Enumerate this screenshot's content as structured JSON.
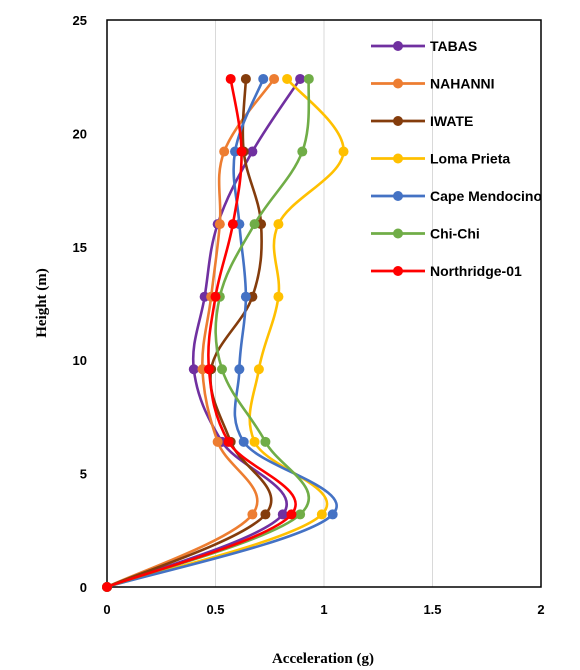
{
  "chart_data": {
    "type": "line",
    "xlabel": "Acceleration (g)",
    "ylabel": "Height (m)",
    "xlim": [
      0,
      2
    ],
    "ylim": [
      0,
      25
    ],
    "xticks": [
      0,
      0.5,
      1,
      1.5,
      2
    ],
    "xtick_labels": [
      "0",
      "0.5",
      "1",
      "1.5",
      "2"
    ],
    "yticks": [
      0,
      5,
      10,
      15,
      20,
      25
    ],
    "ytick_labels": [
      "0",
      "5",
      "10",
      "15",
      "20",
      "25"
    ],
    "grid": "vertical",
    "legend_position": "top-right",
    "heights": [
      0,
      3.2,
      6.4,
      9.6,
      12.8,
      16.0,
      19.2,
      22.4
    ],
    "series": [
      {
        "name": "TABAS",
        "color": "#7030A0",
        "values": [
          0,
          0.81,
          0.53,
          0.4,
          0.45,
          0.51,
          0.67,
          0.89
        ]
      },
      {
        "name": "NAHANNI",
        "color": "#ED7D31",
        "values": [
          0,
          0.67,
          0.51,
          0.44,
          0.48,
          0.52,
          0.54,
          0.77
        ]
      },
      {
        "name": "IWATE",
        "color": "#843C0C",
        "values": [
          0,
          0.73,
          0.57,
          0.48,
          0.67,
          0.71,
          0.63,
          0.64
        ]
      },
      {
        "name": "Loma Prieta",
        "color": "#FFC000",
        "values": [
          0,
          0.99,
          0.68,
          0.7,
          0.79,
          0.79,
          1.09,
          0.83
        ]
      },
      {
        "name": "Cape Mendocino",
        "color": "#4472C4",
        "values": [
          0,
          1.04,
          0.63,
          0.61,
          0.64,
          0.61,
          0.59,
          0.72
        ]
      },
      {
        "name": "Chi-Chi",
        "color": "#70AD47",
        "values": [
          0,
          0.89,
          0.73,
          0.53,
          0.52,
          0.68,
          0.9,
          0.93
        ]
      },
      {
        "name": "Northridge-01",
        "color": "#FF0000",
        "values": [
          0,
          0.85,
          0.56,
          0.47,
          0.5,
          0.58,
          0.62,
          0.57
        ]
      }
    ]
  }
}
